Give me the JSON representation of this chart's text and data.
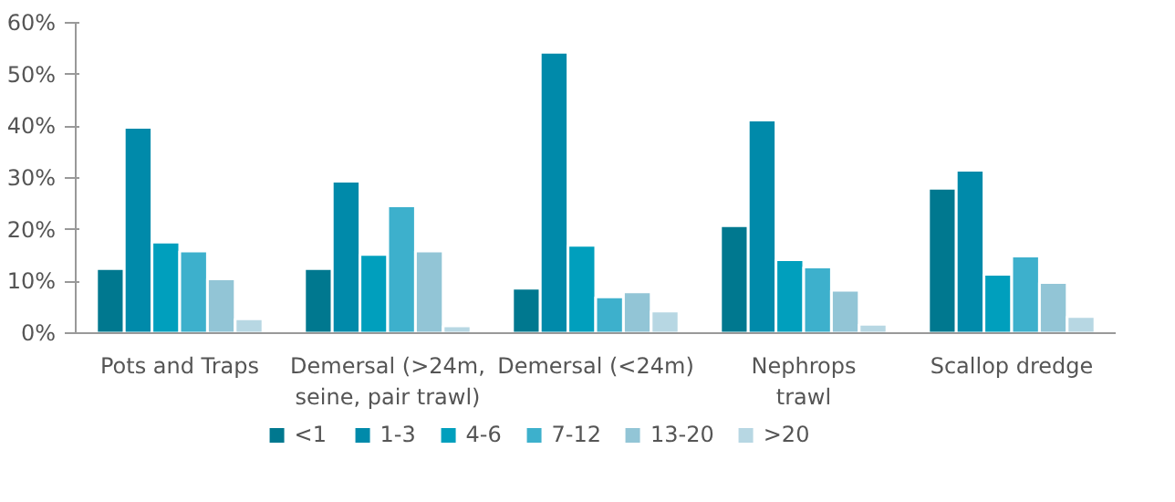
{
  "chart_data": {
    "type": "bar",
    "categories": [
      "Pots and Traps",
      "Demersal (>24m,\nseine, pair trawl)",
      "Demersal (<24m)",
      "Nephrops\ntrawl",
      "Scallop dredge"
    ],
    "series": [
      {
        "name": "<1",
        "color": "#00788f",
        "values": [
          12.5,
          12.5,
          8.7,
          20.8,
          28.0
        ]
      },
      {
        "name": "1-3",
        "color": "#008aaa",
        "values": [
          39.8,
          29.4,
          54.3,
          41.2,
          31.5
        ]
      },
      {
        "name": "4-6",
        "color": "#009fbd",
        "values": [
          17.6,
          15.2,
          17.0,
          14.2,
          11.4
        ]
      },
      {
        "name": "7-12",
        "color": "#3db0cc",
        "values": [
          15.9,
          24.6,
          7.0,
          12.8,
          14.9
        ]
      },
      {
        "name": "13-20",
        "color": "#92c5d6",
        "values": [
          10.5,
          15.9,
          8.0,
          8.3,
          9.8
        ]
      },
      {
        "name": ">20",
        "color": "#b7d7e3",
        "values": [
          2.8,
          1.4,
          4.3,
          1.7,
          3.2
        ]
      }
    ],
    "ylim": [
      0,
      60
    ],
    "yticks": [
      {
        "value": 0,
        "label": "0%"
      },
      {
        "value": 10,
        "label": "10%"
      },
      {
        "value": 20,
        "label": "20%"
      },
      {
        "value": 30,
        "label": "30%"
      },
      {
        "value": 40,
        "label": "40%"
      },
      {
        "value": 50,
        "label": "50%"
      },
      {
        "value": 60,
        "label": "60%"
      }
    ],
    "grid": false,
    "legend": "bottom"
  }
}
